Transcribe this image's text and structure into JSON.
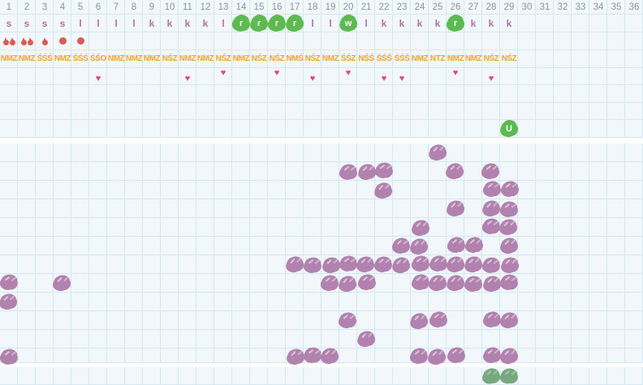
{
  "colors": {
    "background": "#f1f7fa",
    "grid_line": "#d6e7f1",
    "separator_white": "#ffffff",
    "day_number_gray": "#8c959c",
    "letter_mauve": "#b173a8",
    "highlight_green": "#5cbb4e",
    "highlight_text_white": "#ffffff",
    "code_orange": "#f7a329",
    "flow_red": "#dd5a52",
    "heart_pink": "#e2497e",
    "dot_purple": "#b282af",
    "footer_green": "#76a97e"
  },
  "chart_data": {
    "type": "heatmap",
    "days_total": 36,
    "day_numbers": [
      1,
      2,
      3,
      4,
      5,
      6,
      7,
      8,
      9,
      10,
      11,
      12,
      13,
      14,
      15,
      16,
      17,
      18,
      19,
      20,
      21,
      22,
      23,
      24,
      25,
      26,
      27,
      28,
      29,
      30,
      31,
      32,
      33,
      34,
      35,
      36
    ],
    "letters": [
      {
        "day": 1,
        "char": "s",
        "highlight": false
      },
      {
        "day": 2,
        "char": "s",
        "highlight": false
      },
      {
        "day": 3,
        "char": "s",
        "highlight": false
      },
      {
        "day": 4,
        "char": "s",
        "highlight": false
      },
      {
        "day": 5,
        "char": "l",
        "highlight": false
      },
      {
        "day": 6,
        "char": "l",
        "highlight": false
      },
      {
        "day": 7,
        "char": "l",
        "highlight": false
      },
      {
        "day": 8,
        "char": "l",
        "highlight": false
      },
      {
        "day": 9,
        "char": "k",
        "highlight": false
      },
      {
        "day": 10,
        "char": "k",
        "highlight": false
      },
      {
        "day": 11,
        "char": "k",
        "highlight": false
      },
      {
        "day": 12,
        "char": "k",
        "highlight": false
      },
      {
        "day": 13,
        "char": "l",
        "highlight": false
      },
      {
        "day": 14,
        "char": "r",
        "highlight": true
      },
      {
        "day": 15,
        "char": "r",
        "highlight": true
      },
      {
        "day": 16,
        "char": "r",
        "highlight": true
      },
      {
        "day": 17,
        "char": "r",
        "highlight": true
      },
      {
        "day": 18,
        "char": "l",
        "highlight": false
      },
      {
        "day": 19,
        "char": "l",
        "highlight": false
      },
      {
        "day": 20,
        "char": "w",
        "highlight": true
      },
      {
        "day": 21,
        "char": "l",
        "highlight": false
      },
      {
        "day": 22,
        "char": "k",
        "highlight": false
      },
      {
        "day": 23,
        "char": "k",
        "highlight": false
      },
      {
        "day": 24,
        "char": "k",
        "highlight": false
      },
      {
        "day": 25,
        "char": "k",
        "highlight": false
      },
      {
        "day": 26,
        "char": "r",
        "highlight": true
      },
      {
        "day": 27,
        "char": "k",
        "highlight": false
      },
      {
        "day": 28,
        "char": "k",
        "highlight": false
      },
      {
        "day": 29,
        "char": "k",
        "highlight": false
      }
    ],
    "flow_marks": [
      {
        "day": 1,
        "type": "drops-2"
      },
      {
        "day": 2,
        "type": "drops-2"
      },
      {
        "day": 3,
        "type": "drop-1"
      },
      {
        "day": 4,
        "type": "dot"
      },
      {
        "day": 5,
        "type": "dot"
      }
    ],
    "codes": [
      {
        "day": 1,
        "text": "NMZ"
      },
      {
        "day": 2,
        "text": "NMZ"
      },
      {
        "day": 3,
        "text": "ŚŚŚ"
      },
      {
        "day": 4,
        "text": "NMZ"
      },
      {
        "day": 5,
        "text": "ŚŚŚ"
      },
      {
        "day": 6,
        "text": "ŚŚO"
      },
      {
        "day": 7,
        "text": "NMZ"
      },
      {
        "day": 8,
        "text": "NMZ"
      },
      {
        "day": 9,
        "text": "NMZ"
      },
      {
        "day": 10,
        "text": "NŚZ"
      },
      {
        "day": 11,
        "text": "NMZ"
      },
      {
        "day": 12,
        "text": "NMZ"
      },
      {
        "day": 13,
        "text": "NŚZ"
      },
      {
        "day": 14,
        "text": "NMZ"
      },
      {
        "day": 15,
        "text": "NŚZ"
      },
      {
        "day": 16,
        "text": "NŚZ"
      },
      {
        "day": 17,
        "text": "NMŚ"
      },
      {
        "day": 18,
        "text": "NŚZ"
      },
      {
        "day": 19,
        "text": "NMZ"
      },
      {
        "day": 20,
        "text": "ŚŚZ"
      },
      {
        "day": 21,
        "text": "NŚŚ"
      },
      {
        "day": 22,
        "text": "ŚŚŚ"
      },
      {
        "day": 23,
        "text": "ŚŚŚ"
      },
      {
        "day": 24,
        "text": "NMZ"
      },
      {
        "day": 25,
        "text": "NTZ"
      },
      {
        "day": 26,
        "text": "NMZ"
      },
      {
        "day": 27,
        "text": "NMZ"
      },
      {
        "day": 28,
        "text": "NŚZ"
      },
      {
        "day": 29,
        "text": "NŚZ"
      }
    ],
    "hearts": [
      {
        "day": 6,
        "pos": "low"
      },
      {
        "day": 11,
        "pos": "low"
      },
      {
        "day": 13,
        "pos": "high"
      },
      {
        "day": 16,
        "pos": "high"
      },
      {
        "day": 18,
        "pos": "low"
      },
      {
        "day": 20,
        "pos": "high"
      },
      {
        "day": 22,
        "pos": "low"
      },
      {
        "day": 23,
        "pos": "low"
      },
      {
        "day": 26,
        "pos": "high"
      },
      {
        "day": 28,
        "pos": "low"
      }
    ],
    "green_marker": {
      "day": 29,
      "glyph": "U"
    },
    "dot_rows": [
      [
        25
      ],
      [
        20,
        21,
        22,
        26,
        28
      ],
      [
        22,
        28,
        29
      ],
      [
        26,
        28,
        29
      ],
      [
        24,
        28,
        29
      ],
      [
        23,
        24,
        26,
        27,
        29
      ],
      [
        17,
        18,
        19,
        20,
        21,
        22,
        23,
        24,
        25,
        26,
        27,
        28,
        29
      ],
      [
        1,
        4,
        19,
        20,
        21,
        24,
        25,
        26,
        27,
        28,
        29
      ],
      [
        1
      ],
      [
        20,
        24,
        25,
        28,
        29
      ],
      [
        21
      ],
      [
        1,
        17,
        18,
        19,
        24,
        25,
        26,
        28,
        29
      ]
    ],
    "footer_days": [
      28,
      29
    ]
  }
}
